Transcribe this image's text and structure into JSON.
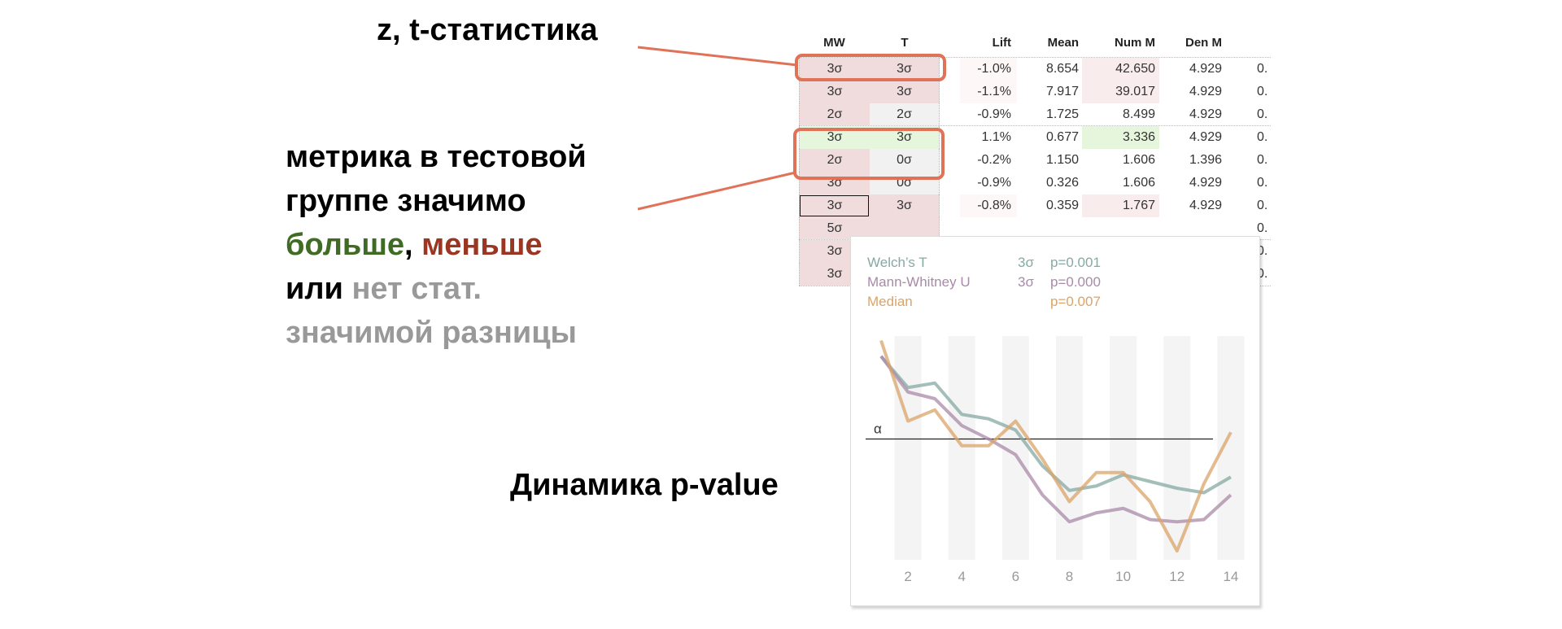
{
  "annotations": {
    "stat_label": "z, t-статистика",
    "significance": {
      "line1": "метрика в тестовой",
      "line2": "группе значимо",
      "greater": "больше",
      "comma": ",",
      "less": "меньше",
      "or": "или",
      "none1": "нет стат.",
      "none2": "значимой разницы"
    },
    "dynamics_label": "Динамика p-value"
  },
  "colors": {
    "greater": "#3f6b24",
    "less": "#9a3622",
    "none": "#999999",
    "highlight": "#e07258",
    "pink": "#f0dcdc",
    "pink_light": "#f9ecec",
    "pink_faint": "#fdf7f7",
    "grey": "#f1f1f1",
    "green": "#e6f6dc"
  },
  "table": {
    "headers": {
      "mw": "MW",
      "t": "T",
      "lift": "Lift",
      "mean": "Mean",
      "num": "Num M",
      "den": "Den M"
    },
    "rows": [
      {
        "mw": "3σ",
        "t": "3σ",
        "lift": "-1.0%",
        "mean": "8.654",
        "num": "42.650",
        "den": "4.929",
        "last": "0.",
        "bg": {
          "mw": "pink",
          "t": "pink",
          "lift": "pink_faint",
          "num": "pink_light"
        }
      },
      {
        "mw": "3σ",
        "t": "3σ",
        "lift": "-1.1%",
        "mean": "7.917",
        "num": "39.017",
        "den": "4.929",
        "last": "0.",
        "bg": {
          "mw": "pink",
          "t": "pink",
          "lift": "pink_faint",
          "num": "pink_light"
        }
      },
      {
        "mw": "2σ",
        "t": "2σ",
        "lift": "-0.9%",
        "mean": "1.725",
        "num": "8.499",
        "den": "4.929",
        "last": "0.",
        "bg": {
          "mw": "pink",
          "t": "grey"
        },
        "group_end": true
      },
      {
        "mw": "3σ",
        "t": "3σ",
        "lift": "1.1%",
        "mean": "0.677",
        "num": "3.336",
        "den": "4.929",
        "last": "0.",
        "bg": {
          "mw": "green",
          "t": "green",
          "num": "green"
        }
      },
      {
        "mw": "2σ",
        "t": "0σ",
        "lift": "-0.2%",
        "mean": "1.150",
        "num": "1.606",
        "den": "1.396",
        "last": "0.",
        "bg": {
          "mw": "pink",
          "t": "grey"
        }
      },
      {
        "mw": "3σ",
        "t": "0σ",
        "lift": "-0.9%",
        "mean": "0.326",
        "num": "1.606",
        "den": "4.929",
        "last": "0.",
        "bg": {
          "mw": "pink",
          "t": "grey"
        }
      },
      {
        "mw": "3σ",
        "t": "3σ",
        "lift": "-0.8%",
        "mean": "0.359",
        "num": "1.767",
        "den": "4.929",
        "last": "0.",
        "selected": true,
        "bg": {
          "mw": "pink",
          "t": "pink",
          "lift": "pink_faint",
          "num": "pink_light"
        }
      },
      {
        "mw": "5σ",
        "last": "0.",
        "bg": {
          "mw": "pink",
          "t": "pink"
        },
        "group_end": true
      },
      {
        "mw": "3σ",
        "last": "0.",
        "bg": {
          "mw": "pink",
          "t": "pink"
        }
      },
      {
        "mw": "3σ",
        "last": "0.",
        "bg": {
          "mw": "pink",
          "t": "pink"
        },
        "group_end": true
      }
    ]
  },
  "tooltip": {
    "legend": [
      {
        "name": "Welch’s T",
        "sigma": "3σ",
        "p": "p=0.001",
        "color": "#86aaa3"
      },
      {
        "name": "Mann-Whitney U",
        "sigma": "3σ",
        "p": "p=0.000",
        "color": "#a98aa8"
      },
      {
        "name": "Median",
        "sigma": "",
        "p": "p=0.007",
        "color": "#dba468"
      }
    ],
    "alpha_label": "α"
  },
  "chart_data": {
    "type": "line",
    "x": [
      1,
      2,
      3,
      4,
      5,
      6,
      7,
      8,
      9,
      10,
      11,
      12,
      13,
      14
    ],
    "x_tick_labels": [
      "2",
      "4",
      "6",
      "8",
      "10",
      "12",
      "14"
    ],
    "y_axis_shown": false,
    "ylim": [
      0,
      1
    ],
    "alpha_threshold": 0.54,
    "banded_background": true,
    "series": [
      {
        "name": "Welch’s T",
        "color": "#86aaa3",
        "values": [
          0.91,
          0.77,
          0.79,
          0.65,
          0.63,
          0.58,
          0.42,
          0.31,
          0.33,
          0.38,
          0.35,
          0.32,
          0.3,
          0.37
        ]
      },
      {
        "name": "Mann-Whitney U",
        "color": "#a98aa8",
        "values": [
          0.91,
          0.75,
          0.72,
          0.6,
          0.54,
          0.47,
          0.29,
          0.17,
          0.21,
          0.23,
          0.18,
          0.17,
          0.18,
          0.29
        ]
      },
      {
        "name": "Median",
        "color": "#dba468",
        "values": [
          0.98,
          0.62,
          0.67,
          0.51,
          0.51,
          0.62,
          0.45,
          0.26,
          0.39,
          0.39,
          0.26,
          0.04,
          0.34,
          0.57
        ]
      }
    ]
  }
}
